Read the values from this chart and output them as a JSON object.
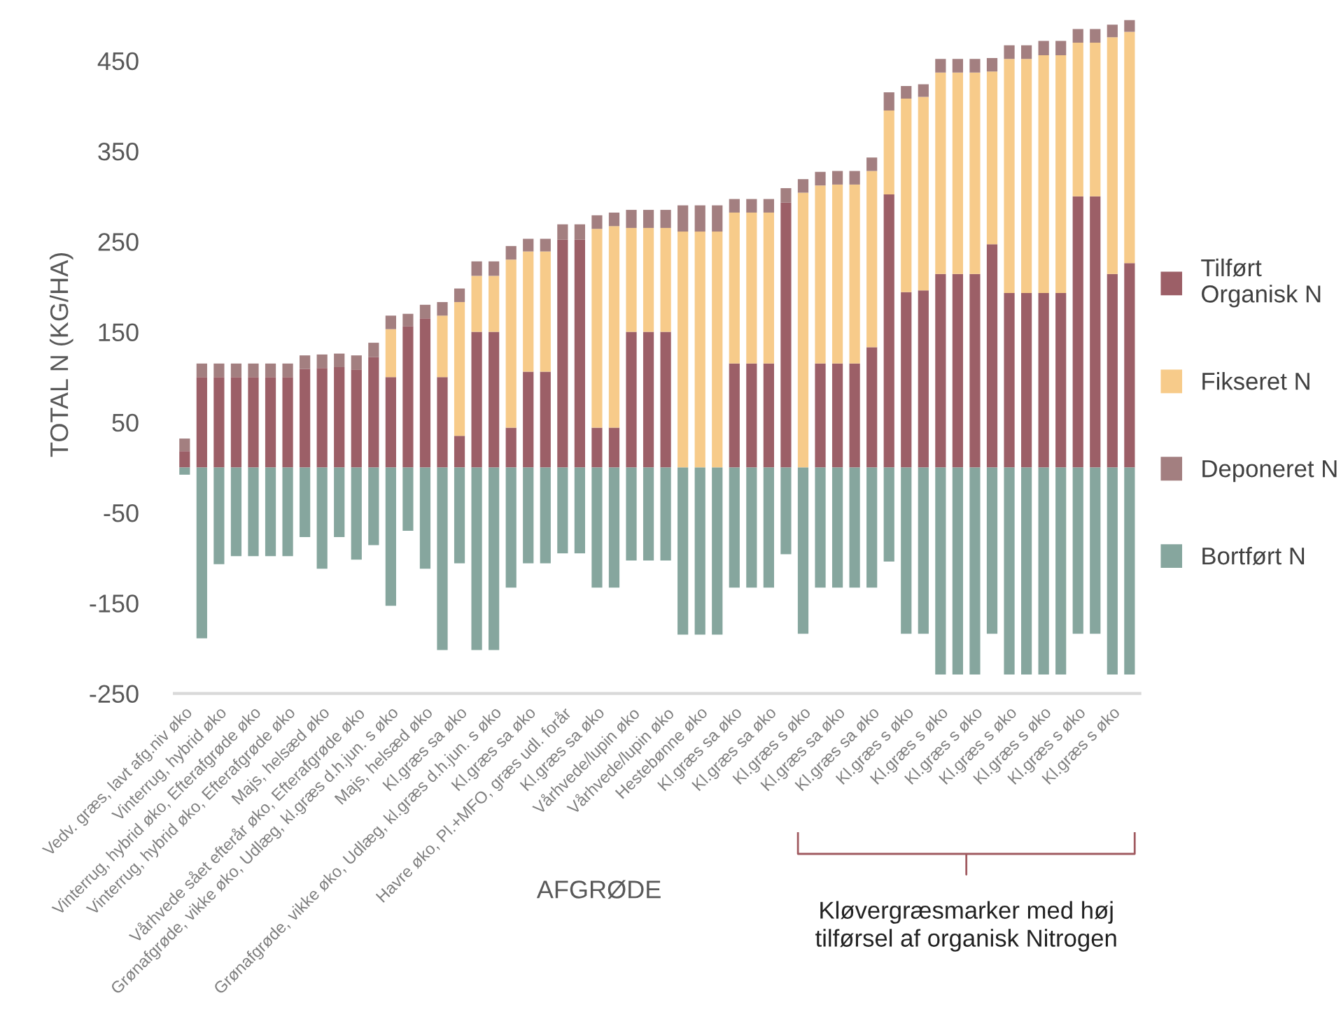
{
  "chart_data": {
    "type": "bar",
    "stacked": true,
    "xlabel": "AFGRØDE",
    "ylabel": "TOTAL N (KG/HA)",
    "categories": [
      "Vedv. græs, lavt afg.niv øko",
      null,
      "Vinterrug, hybrid øko",
      null,
      "Vinterrug, hybrid øko, Efterafgrøde øko",
      null,
      "Vinterrug, hybrid øko, Efterafgrøde øko",
      null,
      "Majs, helsæd øko",
      null,
      "Vårhvede sået efterår øko, Efterafgrøde øko",
      null,
      "Grønafgrøde, vikke øko, Udlæg, kl.græs d.h.jun. s øko",
      null,
      "Majs, helsæd øko",
      null,
      "Kl.græs sa øko",
      null,
      "Grønafgrøde, vikke øko, Udlæg, kl.græs d.h.jun. s øko",
      null,
      "Kl.græs sa øko",
      null,
      "Havre øko, Pl.+MFO, græs udl. forår",
      null,
      "Kl.græs sa øko",
      null,
      "Vårhvede/lupin øko",
      null,
      "Vårhvede/lupin øko",
      null,
      "Hestebønne øko",
      null,
      "Kl.græs sa øko",
      null,
      "Kl.græs sa øko",
      null,
      "Kl.græs s øko",
      null,
      "Kl.græs sa øko",
      null,
      "Kl.græs sa øko",
      null,
      "Kl.græs s øko",
      null,
      "Kl.græs s øko",
      null,
      "Kl.græs s øko",
      null,
      "Kl.græs s øko",
      null,
      "Kl.græs s øko",
      null,
      "Kl.græs s øko",
      null,
      "Kl.græs s øko",
      null
    ],
    "series": [
      {
        "name": "Tilført Organisk N",
        "color": "#9c5f67",
        "values": [
          18,
          100,
          100,
          100,
          100,
          100,
          100,
          109,
          110,
          111,
          108,
          122,
          100,
          156,
          165,
          100,
          35,
          150,
          150,
          44,
          106,
          106,
          252,
          252,
          44,
          44,
          150,
          150,
          150,
          0,
          0,
          0,
          115,
          115,
          115,
          293,
          0,
          115,
          115,
          115,
          133,
          302,
          194,
          196,
          214,
          214,
          214,
          247,
          193,
          193,
          193,
          193,
          300,
          300,
          214,
          226
        ]
      },
      {
        "name": "Fikseret N",
        "color": "#f7cb8a",
        "values": [
          0,
          0,
          0,
          0,
          0,
          0,
          0,
          0,
          0,
          0,
          0,
          0,
          53,
          0,
          0,
          68,
          148,
          62,
          62,
          186,
          133,
          133,
          0,
          0,
          220,
          223,
          115,
          115,
          115,
          261,
          261,
          261,
          167,
          167,
          167,
          0,
          304,
          197,
          198,
          198,
          195,
          93,
          214,
          214,
          223,
          223,
          223,
          191,
          259,
          259,
          263,
          263,
          170,
          170,
          262,
          256
        ]
      },
      {
        "name": "Deponeret N",
        "color": "#a37f80",
        "values": [
          14,
          15,
          15,
          15,
          15,
          15,
          15,
          15,
          15,
          15,
          16,
          16,
          15,
          14,
          15,
          15,
          15,
          16,
          16,
          15,
          14,
          14,
          17,
          17,
          15,
          15,
          20,
          20,
          20,
          29,
          29,
          29,
          15,
          15,
          15,
          16,
          15,
          15,
          15,
          15,
          15,
          20,
          14,
          14,
          15,
          15,
          15,
          15,
          15,
          15,
          16,
          16,
          15,
          15,
          14,
          13
        ]
      },
      {
        "name": "Bortført N",
        "color": "#86a69e",
        "values": [
          -8,
          -189,
          -107,
          -98,
          -98,
          -98,
          -98,
          -77,
          -112,
          -77,
          -102,
          -86,
          -153,
          -70,
          -112,
          -202,
          -106,
          -202,
          -202,
          -133,
          -106,
          -106,
          -95,
          -95,
          -133,
          -133,
          -103,
          -103,
          -103,
          -185,
          -185,
          -185,
          -133,
          -133,
          -133,
          -96,
          -184,
          -133,
          -133,
          -133,
          -133,
          -104,
          -184,
          -184,
          -229,
          -229,
          -229,
          -184,
          -229,
          -229,
          -229,
          -229,
          -184,
          -184,
          -229,
          -229
        ]
      }
    ],
    "ylim": [
      -250,
      500
    ],
    "yticks": [
      450,
      350,
      250,
      150,
      50,
      -50,
      -150,
      -250
    ],
    "legend": "right",
    "grid": false,
    "annotations": [
      "Kløvergræsmarker med høj tilførsel af organisk Nitrogen"
    ]
  }
}
